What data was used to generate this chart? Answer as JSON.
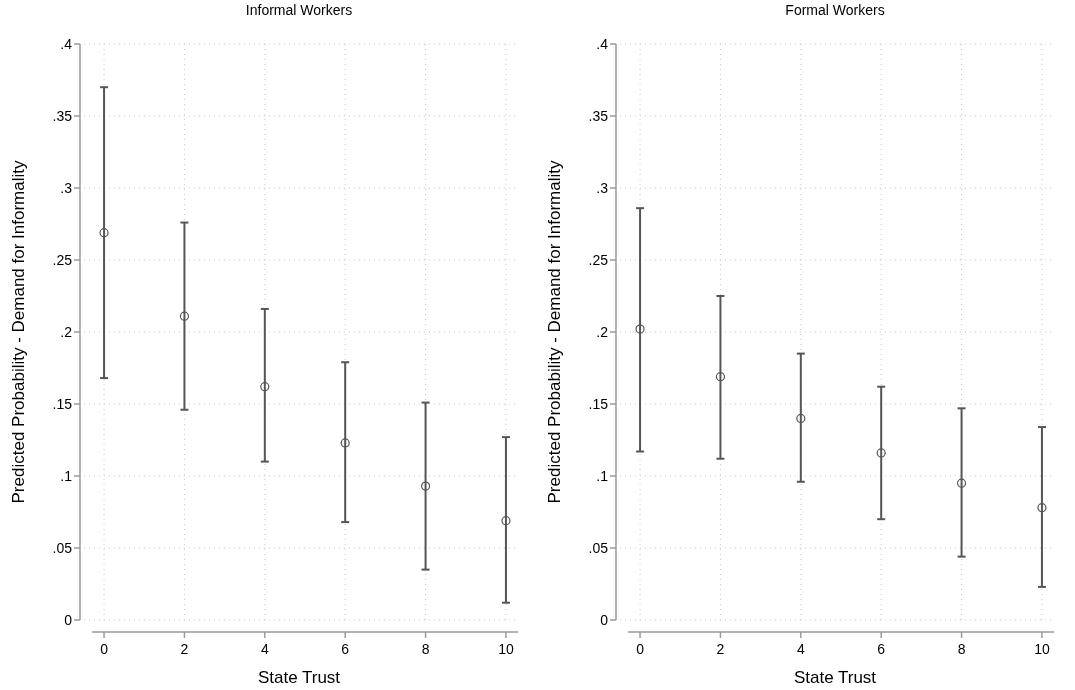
{
  "chart_data": [
    {
      "type": "scatter",
      "title": "Informal Workers",
      "xlabel": "State Trust",
      "ylabel": "Predicted Probability - Demand for Informality",
      "x": [
        0,
        2,
        4,
        6,
        8,
        10
      ],
      "series": [
        {
          "color": "#555555",
          "values": [
            0.269,
            0.211,
            0.162,
            0.123,
            0.093,
            0.069
          ],
          "errors": [
            [
              0.168,
              0.37
            ],
            [
              0.146,
              0.276
            ],
            [
              0.11,
              0.216
            ],
            [
              0.068,
              0.179
            ],
            [
              0.035,
              0.151
            ],
            [
              0.012,
              0.127
            ]
          ]
        }
      ],
      "xlim": [
        -0.3,
        10.3
      ],
      "xticks": [
        0,
        2,
        4,
        6,
        8,
        10
      ],
      "ylim": [
        0,
        0.4
      ],
      "yticks": [
        0,
        {
          "value": 0.05,
          "label": ".05"
        },
        {
          "value": 0.1,
          "label": ".1"
        },
        {
          "value": 0.15,
          "label": ".15"
        },
        {
          "value": 0.2,
          "label": ".2"
        },
        {
          "value": 0.25,
          "label": ".25"
        },
        {
          "value": 0.3,
          "label": ".3"
        },
        {
          "value": 0.35,
          "label": ".35"
        },
        {
          "value": 0.4,
          "label": ".4"
        }
      ],
      "grid": true,
      "marker": "circle"
    },
    {
      "type": "scatter",
      "title": "Formal Workers",
      "xlabel": "State Trust",
      "ylabel": "Predicted Probability - Demand for Informality",
      "x": [
        0,
        2,
        4,
        6,
        8,
        10
      ],
      "series": [
        {
          "color": "#555555",
          "values": [
            0.202,
            0.169,
            0.14,
            0.116,
            0.095,
            0.078
          ],
          "errors": [
            [
              0.117,
              0.286
            ],
            [
              0.112,
              0.225
            ],
            [
              0.096,
              0.185
            ],
            [
              0.07,
              0.162
            ],
            [
              0.044,
              0.147
            ],
            [
              0.023,
              0.134
            ]
          ]
        }
      ],
      "xlim": [
        -0.3,
        10.3
      ],
      "xticks": [
        0,
        2,
        4,
        6,
        8,
        10
      ],
      "ylim": [
        0,
        0.4
      ],
      "yticks": [
        0,
        {
          "value": 0.05,
          "label": ".05"
        },
        {
          "value": 0.1,
          "label": ".1"
        },
        {
          "value": 0.15,
          "label": ".15"
        },
        {
          "value": 0.2,
          "label": ".2"
        },
        {
          "value": 0.25,
          "label": ".25"
        },
        {
          "value": 0.3,
          "label": ".3"
        },
        {
          "value": 0.35,
          "label": ".35"
        },
        {
          "value": 0.4,
          "label": ".4"
        }
      ],
      "grid": true,
      "marker": "circle"
    }
  ]
}
